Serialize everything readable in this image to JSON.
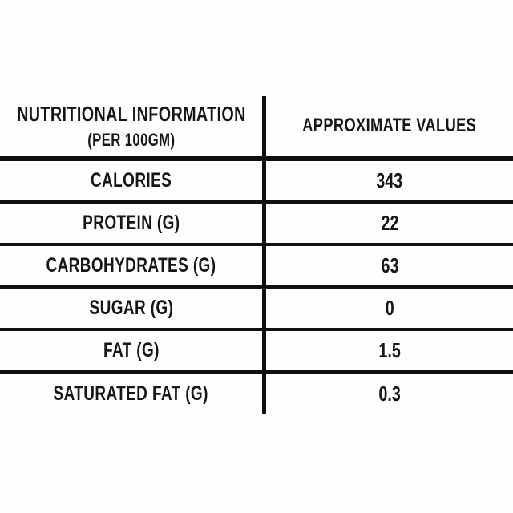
{
  "page": {
    "background_color": "#fefefe",
    "text_color": "#161616",
    "rule_color": "#0f0f0f"
  },
  "table": {
    "header": {
      "left_title": "NUTRITIONAL INFORMATION",
      "left_subtitle": "(PER 100GM)",
      "right_title": "APPROXIMATE VALUES"
    },
    "rows": [
      {
        "label": "CALORIES",
        "value": "343"
      },
      {
        "label": "PROTEIN (G)",
        "value": "22"
      },
      {
        "label": "CARBOHYDRATES (G)",
        "value": "63"
      },
      {
        "label": "SUGAR (G)",
        "value": "0"
      },
      {
        "label": "FAT (G)",
        "value": "1.5"
      },
      {
        "label": "SATURATED FAT (G)",
        "value": "0.3"
      }
    ]
  }
}
